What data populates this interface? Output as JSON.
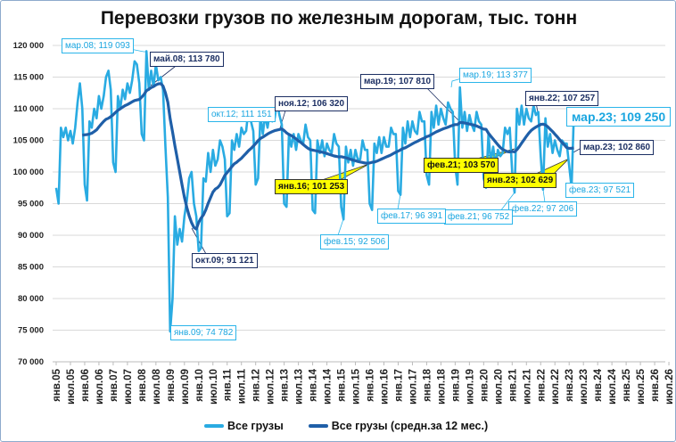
{
  "chart_data": {
    "type": "line",
    "title": "Перевозки грузов по железным дорогам, тыс. тонн",
    "ylim": [
      70000,
      120000
    ],
    "yticks": [
      "70 000",
      "75 000",
      "80 000",
      "85 000",
      "90 000",
      "95 000",
      "100 000",
      "105 000",
      "110 000",
      "115 000",
      "120 000"
    ],
    "xticks": [
      "янв.05",
      "июл.05",
      "янв.06",
      "июл.06",
      "янв.07",
      "июл.07",
      "янв.08",
      "июл.08",
      "янв.09",
      "июл.09",
      "янв.10",
      "июл.10",
      "янв.11",
      "июл.11",
      "янв.12",
      "июл.12",
      "янв.13",
      "июл.13",
      "янв.14",
      "июл.14",
      "янв.15",
      "июл.15",
      "янв.16",
      "июл.16",
      "янв.17",
      "июл.17",
      "янв.18",
      "июл.18",
      "янв.19",
      "июл.19",
      "янв.20",
      "июл.20",
      "янв.21",
      "июл.21",
      "янв.22",
      "июл.22",
      "янв.23",
      "июл.23",
      "янв.24",
      "июл.24",
      "янв.25",
      "июл.25",
      "янв.26",
      "июл.26"
    ],
    "grid": true,
    "legend_position": "bottom",
    "series": [
      {
        "name": "Все грузы",
        "color": "#29abe2",
        "start": "янв.05",
        "values": [
          97500,
          95000,
          107000,
          105500,
          107000,
          105000,
          106500,
          104500,
          107000,
          111000,
          114000,
          110000,
          98000,
          95500,
          108000,
          107000,
          110000,
          108500,
          112000,
          110000,
          112000,
          115000,
          116000,
          113000,
          101500,
          100000,
          112000,
          110000,
          113000,
          111500,
          114000,
          112500,
          114500,
          117500,
          117000,
          114000,
          106000,
          105000,
          119093,
          113000,
          116000,
          113500,
          117000,
          114500,
          115000,
          113000,
          104000,
          96000,
          74782,
          80000,
          93000,
          88500,
          91000,
          89000,
          93000,
          95500,
          99000,
          100000,
          95000,
          93000,
          87500,
          88000,
          99000,
          98500,
          103000,
          100000,
          103500,
          101000,
          102000,
          105000,
          104000,
          102000,
          93000,
          93500,
          105000,
          103500,
          106000,
          104000,
          107000,
          106000,
          106500,
          110000,
          108000,
          106500,
          98000,
          99000,
          109000,
          106000,
          109000,
          107000,
          109500,
          108000,
          108500,
          111151,
          109000,
          107500,
          95000,
          94500,
          106000,
          104000,
          106000,
          103500,
          106000,
          105000,
          104500,
          107500,
          105500,
          105000,
          94000,
          93500,
          105000,
          103000,
          105000,
          102500,
          104500,
          103500,
          103000,
          106000,
          104500,
          104000,
          94500,
          92506,
          104000,
          101500,
          103500,
          101000,
          103500,
          102000,
          102000,
          105000,
          103500,
          103500,
          95000,
          94000,
          104500,
          103000,
          105500,
          103000,
          105500,
          104000,
          104000,
          107000,
          106000,
          106000,
          97000,
          96391,
          107000,
          104500,
          108000,
          105500,
          108000,
          106500,
          106000,
          109500,
          108000,
          108000,
          99500,
          98000,
          109500,
          107000,
          110500,
          107500,
          110000,
          108500,
          107500,
          111000,
          110000,
          109500,
          101000,
          98000,
          113377,
          107000,
          109500,
          106500,
          109000,
          107500,
          106500,
          109500,
          108000,
          107500,
          99000,
          97500,
          106000,
          101500,
          104000,
          101000,
          103500,
          102500,
          103000,
          107000,
          106000,
          107000,
          100000,
          96752,
          110000,
          107500,
          110500,
          107500,
          110000,
          108500,
          108000,
          110500,
          109000,
          109500,
          102500,
          97206,
          108500,
          104000,
          106000,
          103000,
          105000,
          103500,
          102500,
          105000,
          104500,
          104500,
          101000,
          97521,
          109250
        ]
      },
      {
        "name": "Все грузы (средн.за 12 мес.)",
        "color": "#1f5fa8",
        "window": 12
      }
    ],
    "annotations": [
      {
        "label": "мар.08; 119 093",
        "style": "light"
      },
      {
        "label": "май.08;  113 780",
        "style": "dark"
      },
      {
        "label": "окт.12; 111 151",
        "style": "light"
      },
      {
        "label": "ноя.12;  106 320",
        "style": "dark"
      },
      {
        "label": "мар.19;  107 810",
        "style": "dark"
      },
      {
        "label": "мар.19; 113 377",
        "style": "light"
      },
      {
        "label": "янв.22;  107 257",
        "style": "dark"
      },
      {
        "label": "мар.23; 109 250",
        "style": "light-big"
      },
      {
        "label": "мар.23;  102 860",
        "style": "dark"
      },
      {
        "label": "фев.21;  103 570",
        "style": "yellow"
      },
      {
        "label": "янв.23;  102 629",
        "style": "yellow"
      },
      {
        "label": "янв.16;  101 253",
        "style": "yellow"
      },
      {
        "label": "фев.23; 97 521",
        "style": "light"
      },
      {
        "label": "фев.22; 97 206",
        "style": "light"
      },
      {
        "label": "фев.21; 96 752",
        "style": "light"
      },
      {
        "label": "фев.17; 96 391",
        "style": "light"
      },
      {
        "label": "фев.15; 92 506",
        "style": "light"
      },
      {
        "label": "окт.09;  91 121",
        "style": "dark"
      },
      {
        "label": "янв.09; 74 782",
        "style": "light"
      }
    ]
  }
}
